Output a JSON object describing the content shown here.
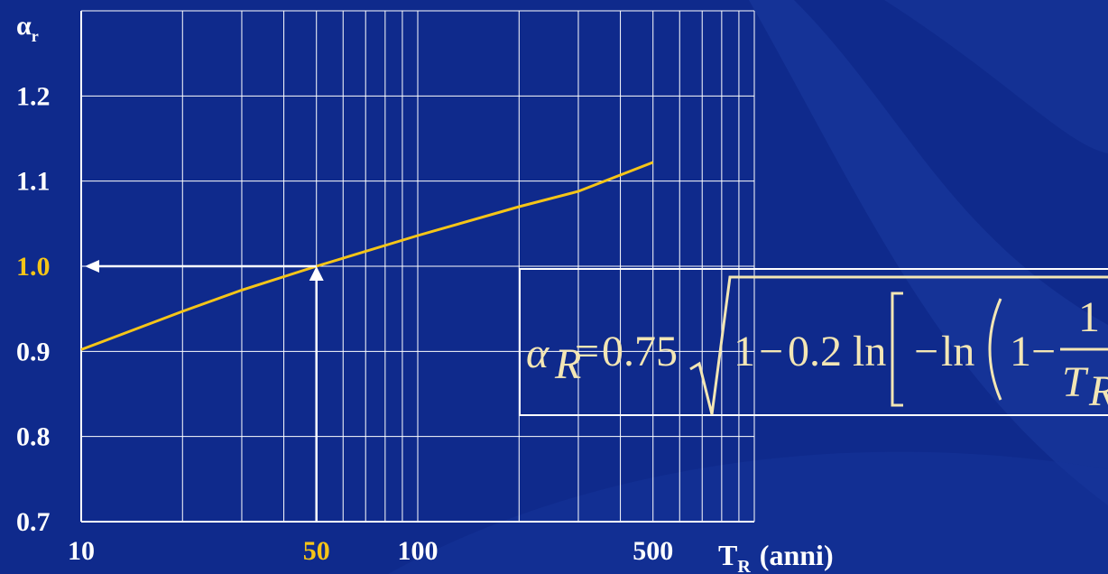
{
  "colors": {
    "background": "#0f2a8c",
    "grid": "#ffffff",
    "curve": "#f5c518",
    "arrow": "#ffffff",
    "highlight": "#f5c518",
    "formula": "#f3e6b4"
  },
  "chart_data": {
    "type": "line",
    "xscale": "log",
    "xlim": [
      10,
      1000
    ],
    "ylim": [
      0.7,
      1.3
    ],
    "grid": true,
    "ylabel": "α",
    "ylabel_sub": "r",
    "xlabel": "T",
    "xlabel_sub": "R",
    "xlabel_suffix": "(anni)",
    "x_tick_labels": [
      {
        "value": 10,
        "label": "10",
        "highlight": false
      },
      {
        "value": 50,
        "label": "50",
        "highlight": true
      },
      {
        "value": 100,
        "label": "100",
        "highlight": false
      },
      {
        "value": 500,
        "label": "500",
        "highlight": false
      }
    ],
    "y_tick_labels": [
      {
        "value": 0.7,
        "label": "0.7",
        "highlight": false
      },
      {
        "value": 0.8,
        "label": "0.8",
        "highlight": false
      },
      {
        "value": 0.9,
        "label": "0.9",
        "highlight": false
      },
      {
        "value": 1.0,
        "label": "1.0",
        "highlight": true
      },
      {
        "value": 1.1,
        "label": "1.1",
        "highlight": false
      },
      {
        "value": 1.2,
        "label": "1.2",
        "highlight": false
      }
    ],
    "series": [
      {
        "x": [
          10,
          20,
          30,
          50,
          100,
          200,
          300,
          500
        ],
        "y": [
          0.902,
          0.947,
          0.972,
          1.0,
          1.036,
          1.07,
          1.088,
          1.122
        ]
      }
    ],
    "annotation": {
      "x": 50,
      "y": 1.0
    },
    "formula": {
      "lhs": "α",
      "lhs_sub": "R",
      "eq": "=",
      "coef": "0.75",
      "one": "1",
      "minus": "−",
      "c2": "0.2",
      "ln": "ln",
      "one_b": "1",
      "numerator": "1",
      "den": "T",
      "den_sub": "R"
    }
  }
}
